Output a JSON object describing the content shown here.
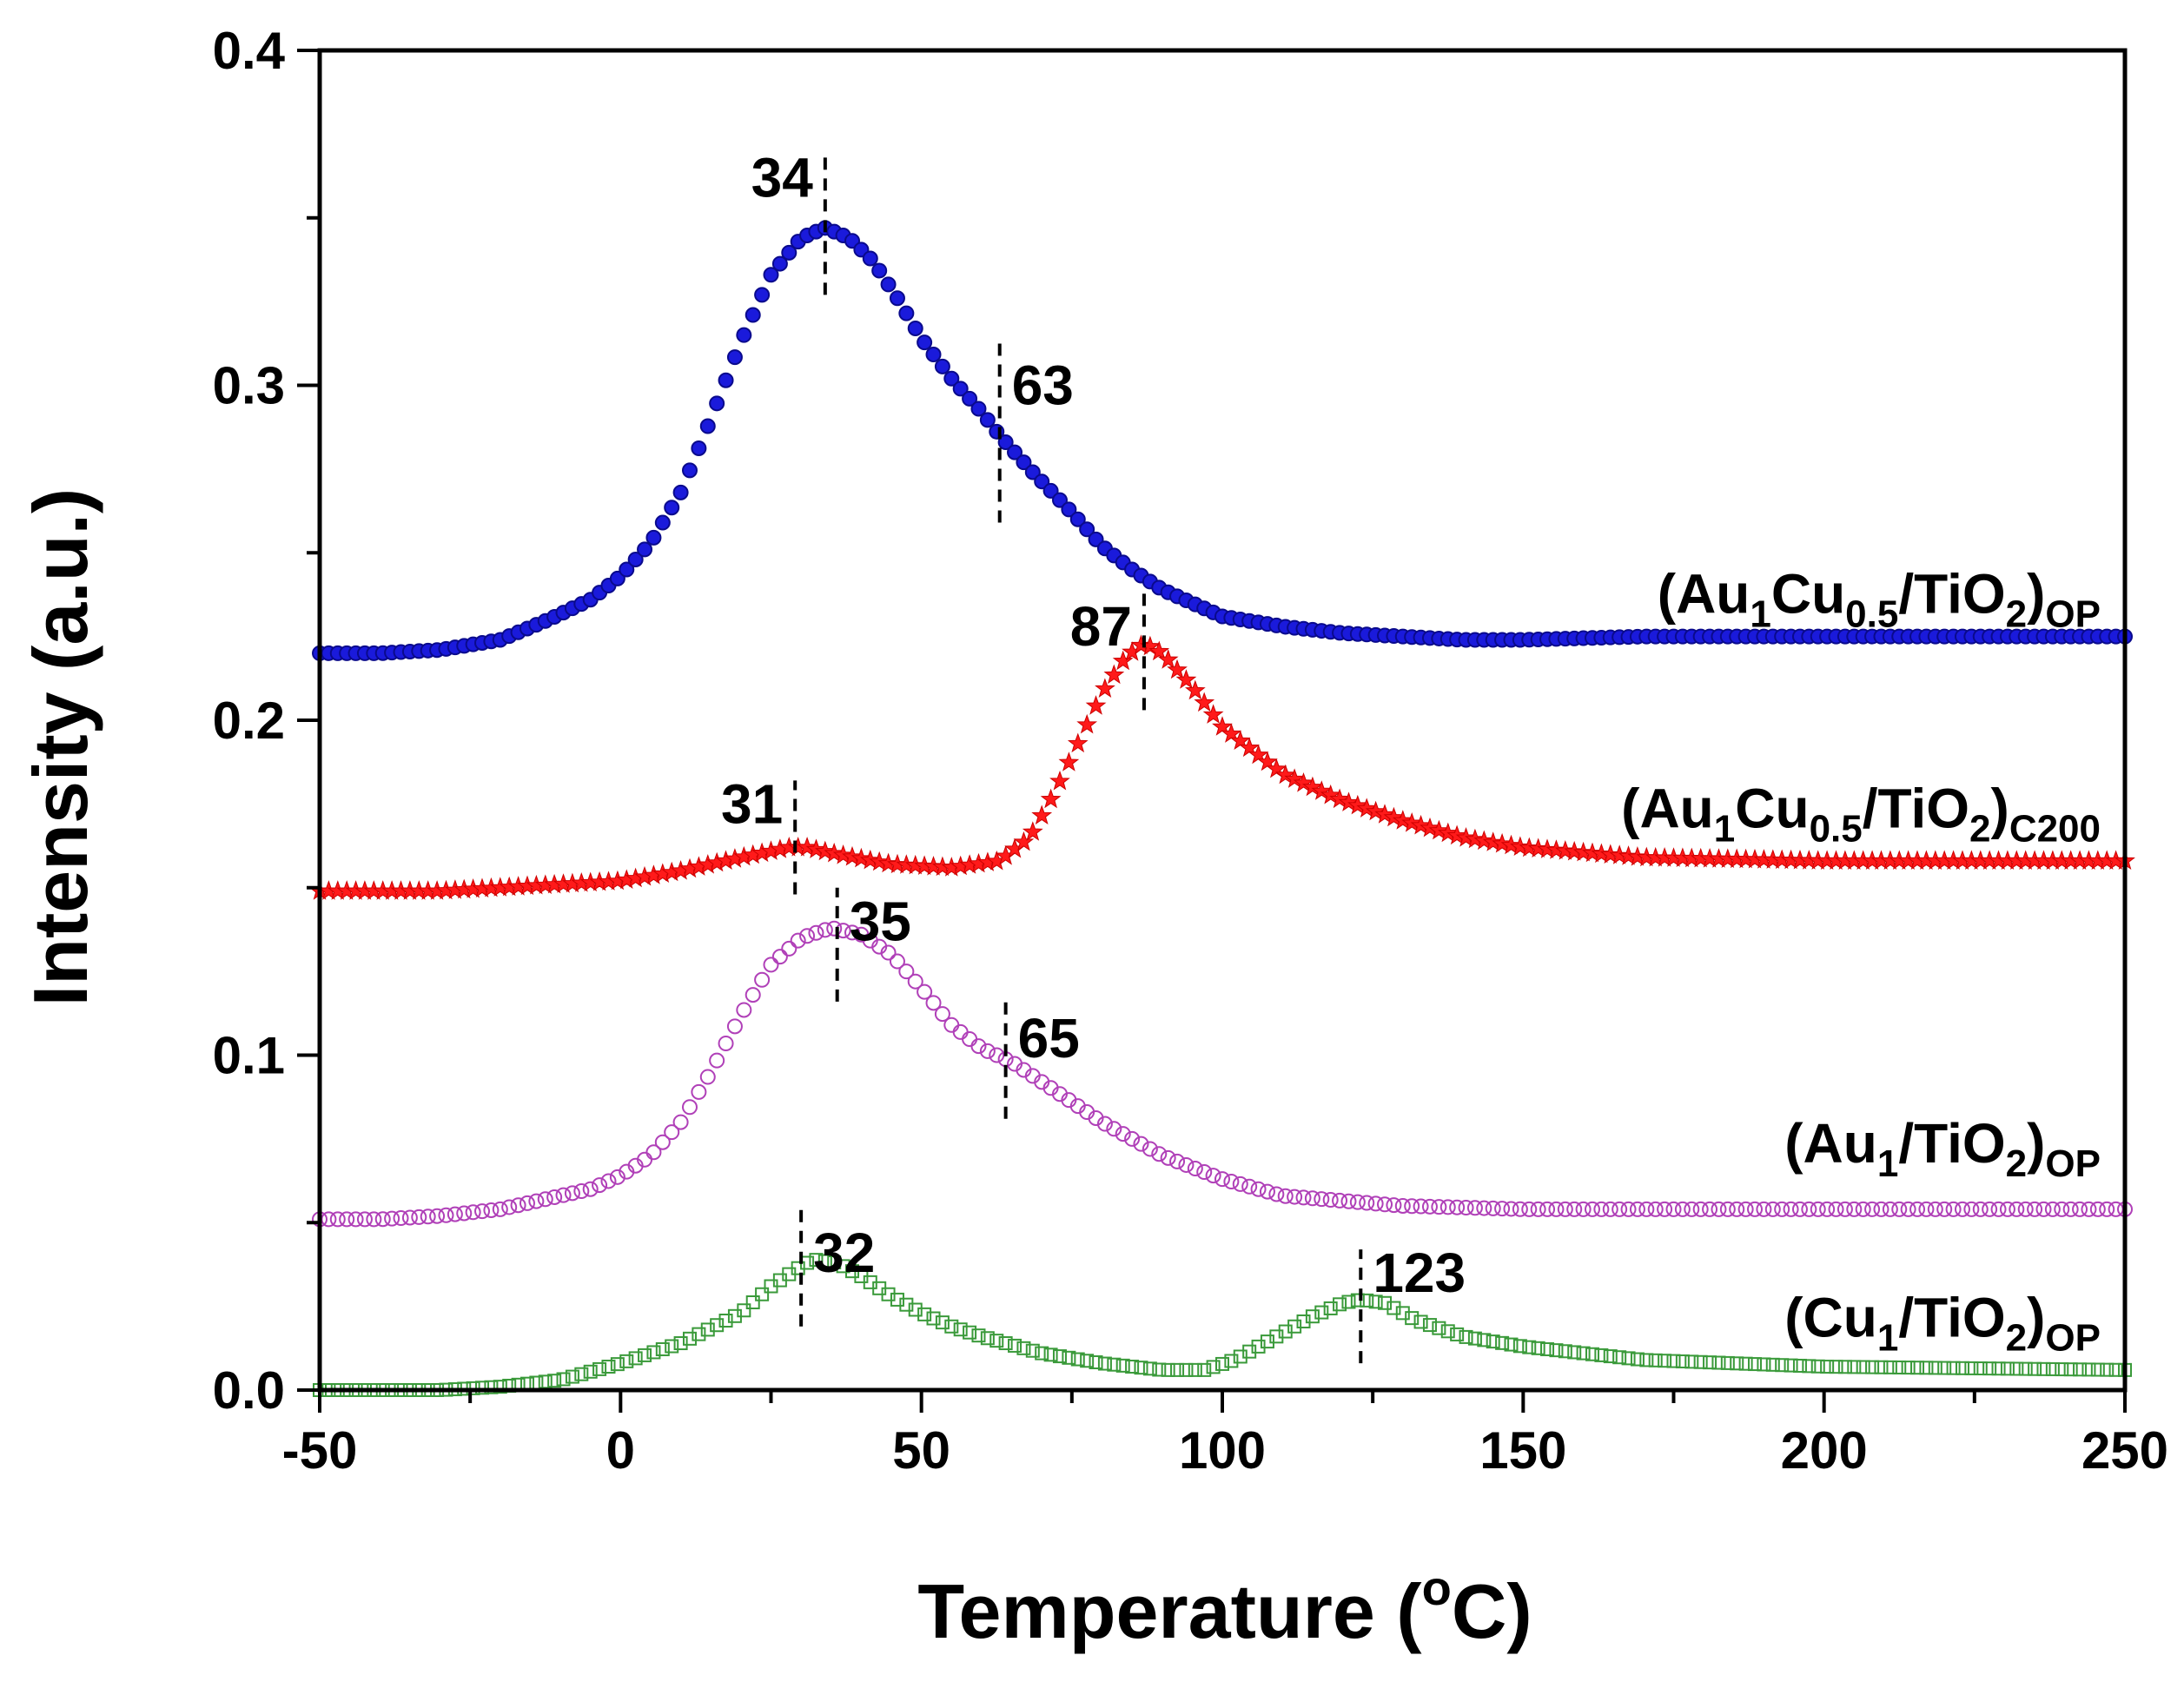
{
  "chart_data": {
    "type": "scatter",
    "title": "",
    "xlabel": {
      "main": "Temperature (",
      "sup": "o",
      "tail": "C)"
    },
    "ylabel": "Intensity (a.u.)",
    "xlim": [
      -50,
      250
    ],
    "ylim": [
      0,
      0.4
    ],
    "x_ticks": [
      -50,
      0,
      50,
      100,
      150,
      200,
      250
    ],
    "x_tick_labels": [
      "-50",
      "0",
      "50",
      "100",
      "150",
      "200",
      "250"
    ],
    "y_ticks": [
      0.0,
      0.1,
      0.2,
      0.3,
      0.4
    ],
    "y_tick_labels": [
      "0.0",
      "0.1",
      "0.2",
      "0.3",
      "0.4"
    ],
    "grid": false,
    "series": [
      {
        "id": "au1cu05_op",
        "name": "(Au1Cu0.5/TiO2)OP",
        "label": {
          "a": "(Au",
          "a_sub": "1",
          "b": "Cu",
          "b_sub": "0.5",
          "c": "/TiO",
          "c_sub": "2",
          "d": ")",
          "tail_sub": "OP"
        },
        "label_at": [
          250,
          0.232
        ],
        "marker": "filled-circle",
        "color": "#1a1adb",
        "stroke": "#0a0a8c",
        "points": [
          [
            -50,
            0.22
          ],
          [
            -40,
            0.22
          ],
          [
            -30,
            0.221
          ],
          [
            -20,
            0.224
          ],
          [
            -12,
            0.23
          ],
          [
            -5,
            0.236
          ],
          [
            0,
            0.243
          ],
          [
            5,
            0.253
          ],
          [
            10,
            0.268
          ],
          [
            15,
            0.29
          ],
          [
            20,
            0.313
          ],
          [
            25,
            0.333
          ],
          [
            30,
            0.344
          ],
          [
            34,
            0.347
          ],
          [
            38,
            0.344
          ],
          [
            42,
            0.337
          ],
          [
            46,
            0.326
          ],
          [
            50,
            0.314
          ],
          [
            55,
            0.302
          ],
          [
            60,
            0.292
          ],
          [
            63,
            0.285
          ],
          [
            68,
            0.275
          ],
          [
            75,
            0.262
          ],
          [
            80,
            0.252
          ],
          [
            85,
            0.245
          ],
          [
            90,
            0.239
          ],
          [
            95,
            0.235
          ],
          [
            100,
            0.231
          ],
          [
            110,
            0.228
          ],
          [
            120,
            0.226
          ],
          [
            140,
            0.224
          ],
          [
            150,
            0.224
          ],
          [
            170,
            0.225
          ],
          [
            200,
            0.225
          ],
          [
            250,
            0.225
          ]
        ]
      },
      {
        "id": "au1cu05_c200",
        "name": "(Au1Cu0.5/TiO2)C200",
        "label": {
          "a": "(Au",
          "a_sub": "1",
          "b": "Cu",
          "b_sub": "0.5",
          "c": "/TiO",
          "c_sub": "2",
          "d": ")",
          "tail_sub": "C200"
        },
        "label_at": [
          250,
          0.168
        ],
        "marker": "star",
        "color": "#ff1a1a",
        "stroke": "#cc0000",
        "points": [
          [
            -50,
            0.149
          ],
          [
            -30,
            0.149
          ],
          [
            -10,
            0.151
          ],
          [
            0,
            0.152
          ],
          [
            10,
            0.155
          ],
          [
            20,
            0.159
          ],
          [
            28,
            0.162
          ],
          [
            31,
            0.162
          ],
          [
            36,
            0.16
          ],
          [
            45,
            0.157
          ],
          [
            55,
            0.156
          ],
          [
            63,
            0.158
          ],
          [
            68,
            0.165
          ],
          [
            72,
            0.178
          ],
          [
            76,
            0.193
          ],
          [
            80,
            0.208
          ],
          [
            84,
            0.219
          ],
          [
            87,
            0.223
          ],
          [
            90,
            0.22
          ],
          [
            95,
            0.21
          ],
          [
            100,
            0.198
          ],
          [
            110,
            0.184
          ],
          [
            120,
            0.176
          ],
          [
            130,
            0.17
          ],
          [
            140,
            0.165
          ],
          [
            150,
            0.162
          ],
          [
            170,
            0.159
          ],
          [
            200,
            0.158
          ],
          [
            250,
            0.158
          ]
        ]
      },
      {
        "id": "au1_op",
        "name": "(Au1/TiO2)OP",
        "label": {
          "a": "(Au",
          "a_sub": "1",
          "b": "",
          "b_sub": "",
          "c": "/TiO",
          "c_sub": "2",
          "d": ")",
          "tail_sub": "OP"
        },
        "label_at": [
          250,
          0.068
        ],
        "marker": "open-circle",
        "color": "#b040b8",
        "stroke": "#b040b8",
        "points": [
          [
            -50,
            0.051
          ],
          [
            -40,
            0.051
          ],
          [
            -30,
            0.052
          ],
          [
            -20,
            0.054
          ],
          [
            -10,
            0.058
          ],
          [
            -5,
            0.06
          ],
          [
            0,
            0.064
          ],
          [
            5,
            0.07
          ],
          [
            10,
            0.08
          ],
          [
            15,
            0.095
          ],
          [
            20,
            0.112
          ],
          [
            25,
            0.127
          ],
          [
            30,
            0.135
          ],
          [
            35,
            0.138
          ],
          [
            40,
            0.136
          ],
          [
            45,
            0.13
          ],
          [
            50,
            0.12
          ],
          [
            55,
            0.109
          ],
          [
            60,
            0.102
          ],
          [
            65,
            0.098
          ],
          [
            70,
            0.092
          ],
          [
            80,
            0.08
          ],
          [
            90,
            0.07
          ],
          [
            100,
            0.063
          ],
          [
            110,
            0.058
          ],
          [
            130,
            0.055
          ],
          [
            150,
            0.054
          ],
          [
            200,
            0.054
          ],
          [
            250,
            0.054
          ]
        ]
      },
      {
        "id": "cu1_op",
        "name": "(Cu1/TiO2)OP",
        "label": {
          "a": "(Cu",
          "a_sub": "1",
          "b": "",
          "b_sub": "",
          "c": "/TiO",
          "c_sub": "2",
          "d": ")",
          "tail_sub": "OP"
        },
        "label_at": [
          250,
          0.016
        ],
        "marker": "open-square",
        "color": "#3a9a3a",
        "stroke": "#3a9a3a",
        "points": [
          [
            -50,
            0.0
          ],
          [
            -30,
            0.0
          ],
          [
            -20,
            0.001
          ],
          [
            -10,
            0.003
          ],
          [
            0,
            0.008
          ],
          [
            10,
            0.014
          ],
          [
            20,
            0.023
          ],
          [
            25,
            0.031
          ],
          [
            30,
            0.037
          ],
          [
            32,
            0.039
          ],
          [
            36,
            0.038
          ],
          [
            40,
            0.034
          ],
          [
            45,
            0.028
          ],
          [
            50,
            0.023
          ],
          [
            55,
            0.019
          ],
          [
            60,
            0.016
          ],
          [
            70,
            0.011
          ],
          [
            80,
            0.008
          ],
          [
            90,
            0.006
          ],
          [
            97,
            0.006
          ],
          [
            102,
            0.009
          ],
          [
            108,
            0.015
          ],
          [
            115,
            0.022
          ],
          [
            120,
            0.026
          ],
          [
            123,
            0.027
          ],
          [
            127,
            0.026
          ],
          [
            132,
            0.021
          ],
          [
            140,
            0.016
          ],
          [
            150,
            0.013
          ],
          [
            170,
            0.009
          ],
          [
            200,
            0.007
          ],
          [
            250,
            0.006
          ]
        ]
      }
    ],
    "annotations": [
      {
        "text": "34",
        "x": 34,
        "y_from": 0.327,
        "y_to": 0.368,
        "label_side": "left",
        "label_y": 0.362
      },
      {
        "text": "63",
        "x": 63,
        "y_from": 0.259,
        "y_to": 0.315,
        "label_side": "right",
        "label_y": 0.3
      },
      {
        "text": "87",
        "x": 87,
        "y_from": 0.203,
        "y_to": 0.238,
        "label_side": "left",
        "label_y": 0.228
      },
      {
        "text": "31",
        "x": 29,
        "y_from": 0.148,
        "y_to": 0.182,
        "label_side": "left",
        "label_y": 0.175
      },
      {
        "text": "35",
        "x": 36,
        "y_from": 0.116,
        "y_to": 0.15,
        "label_side": "right",
        "label_y": 0.14
      },
      {
        "text": "65",
        "x": 64,
        "y_from": 0.081,
        "y_to": 0.117,
        "label_side": "right",
        "label_y": 0.105
      },
      {
        "text": "32",
        "x": 30,
        "y_from": 0.019,
        "y_to": 0.055,
        "label_side": "right",
        "label_y": 0.041
      },
      {
        "text": "123",
        "x": 123,
        "y_from": 0.008,
        "y_to": 0.042,
        "label_side": "right",
        "label_y": 0.035
      }
    ]
  }
}
